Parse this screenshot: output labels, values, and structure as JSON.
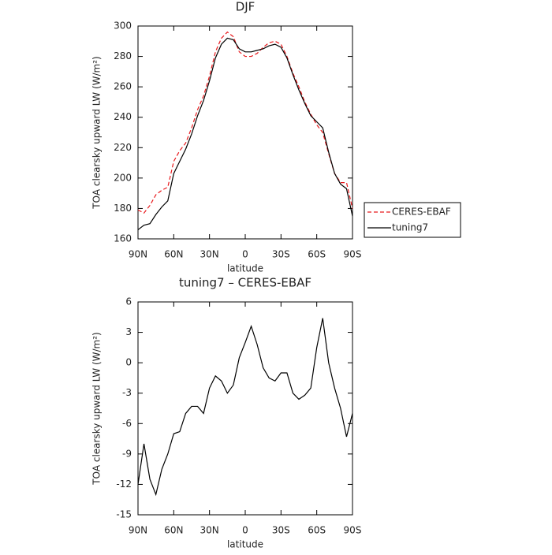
{
  "chart_data": [
    {
      "type": "line",
      "title": "DJF",
      "xlabel": "latitude",
      "ylabel": "TOA clearsky upward LW (W/m²)",
      "x": [
        90,
        85,
        80,
        75,
        70,
        65,
        60,
        55,
        50,
        45,
        40,
        35,
        30,
        25,
        20,
        15,
        10,
        5,
        0,
        -5,
        -10,
        -15,
        -20,
        -25,
        -30,
        -35,
        -40,
        -45,
        -50,
        -55,
        -60,
        -65,
        -70,
        -75,
        -80,
        -85,
        -90
      ],
      "series": [
        {
          "name": "CERES-EBAF",
          "color": "#e8191c",
          "dashed": true,
          "values": [
            179,
            177,
            182,
            189,
            192,
            194,
            211,
            218,
            223,
            233,
            245,
            254,
            267,
            283,
            292,
            296,
            293,
            283,
            280,
            280,
            282,
            286,
            289,
            290,
            288,
            280,
            269,
            260,
            250,
            242,
            235,
            230,
            216,
            203,
            197,
            197,
            180
          ]
        },
        {
          "name": "tuning7",
          "color": "#000000",
          "dashed": false,
          "values": [
            166,
            169,
            170,
            176,
            181,
            185,
            203,
            211,
            219,
            229,
            241,
            251,
            264,
            279,
            288,
            292,
            291,
            285,
            283,
            283,
            284,
            285,
            287,
            288,
            286,
            279,
            268,
            258,
            249,
            241,
            237,
            233,
            217,
            203,
            196,
            193,
            175
          ]
        }
      ],
      "xlim": [
        90,
        -90
      ],
      "xticks": [
        {
          "value": 90,
          "label": "90N"
        },
        {
          "value": 60,
          "label": "60N"
        },
        {
          "value": 30,
          "label": "30N"
        },
        0,
        {
          "value": -30,
          "label": "30S"
        },
        {
          "value": -60,
          "label": "60S"
        },
        {
          "value": -90,
          "label": "90S"
        }
      ],
      "ylim": [
        160,
        300
      ],
      "yticks": [
        160,
        180,
        200,
        220,
        240,
        260,
        280,
        300
      ],
      "legend": "right"
    },
    {
      "type": "line",
      "title": "tuning7 – CERES-EBAF",
      "xlabel": "latitude",
      "ylabel": "TOA clearsky upward LW (W/m²)",
      "x": [
        90,
        85,
        80,
        75,
        70,
        65,
        60,
        55,
        50,
        45,
        40,
        35,
        30,
        25,
        20,
        15,
        10,
        5,
        0,
        -5,
        -10,
        -15,
        -20,
        -25,
        -30,
        -35,
        -40,
        -45,
        -50,
        -55,
        -60,
        -65,
        -70,
        -75,
        -80,
        -85,
        -90
      ],
      "values": [
        -12,
        -8,
        -11.5,
        -13,
        -10.5,
        -9,
        -7,
        -6.8,
        -5,
        -4.3,
        -4.3,
        -5,
        -2.5,
        -1.3,
        -1.8,
        -3,
        -2.2,
        0.5,
        2,
        3.6,
        1.8,
        -0.5,
        -1.5,
        -1.8,
        -1,
        -1,
        -3,
        -3.6,
        -3.2,
        -2.5,
        1.5,
        4.4,
        0,
        -2.5,
        -4.5,
        -7.3,
        -5
      ],
      "color": "#000000",
      "xlim": [
        90,
        -90
      ],
      "xticks": [
        {
          "value": 90,
          "label": "90N"
        },
        {
          "value": 60,
          "label": "60N"
        },
        {
          "value": 30,
          "label": "30N"
        },
        0,
        {
          "value": -30,
          "label": "30S"
        },
        {
          "value": -60,
          "label": "60S"
        },
        {
          "value": -90,
          "label": "90S"
        }
      ],
      "ylim": [
        -15,
        6
      ],
      "yticks": [
        -15,
        -12,
        -9,
        -6,
        -3,
        0,
        3,
        6
      ]
    }
  ]
}
